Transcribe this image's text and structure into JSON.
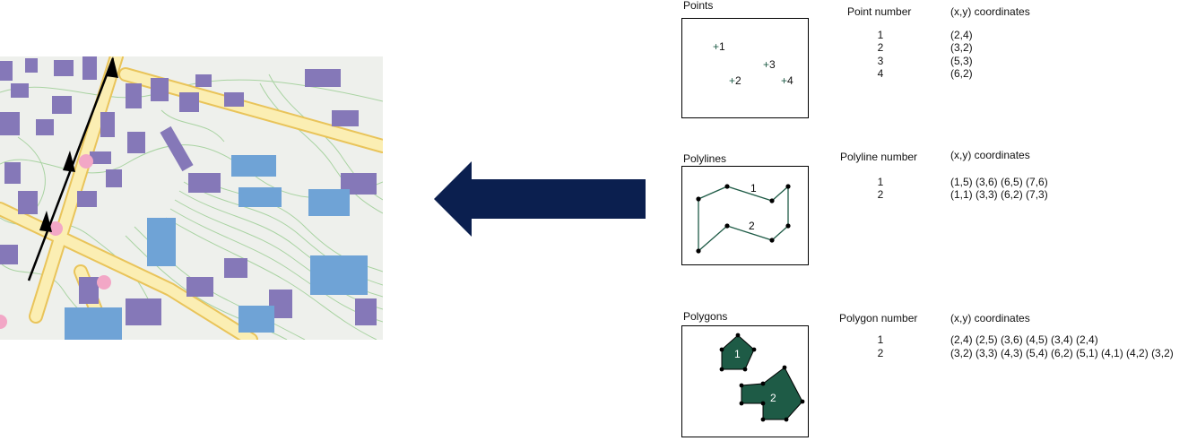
{
  "points": {
    "title": "Points",
    "col_number": "Point number",
    "col_coords": "(x,y) coordinates",
    "rows": [
      {
        "n": "1",
        "c": "(2,4)"
      },
      {
        "n": "2",
        "c": "(3,2)"
      },
      {
        "n": "3",
        "c": "(5,3)"
      },
      {
        "n": "4",
        "c": "(6,2)"
      }
    ],
    "labels": [
      "1",
      "2",
      "3",
      "4"
    ]
  },
  "polylines": {
    "title": "Polylines",
    "col_number": "Polyline number",
    "col_coords": "(x,y) coordinates",
    "rows": [
      {
        "n": "1",
        "c": "(1,5) (3,6) (6,5) (7,6)"
      },
      {
        "n": "2",
        "c": "(1,1) (3,3) (6,2) (7,3)"
      }
    ],
    "labels": [
      "1",
      "2"
    ]
  },
  "polygons": {
    "title": "Polygons",
    "col_number": "Polygon number",
    "col_coords": "(x,y) coordinates",
    "rows": [
      {
        "n": "1",
        "c": "(2,4) (2,5) (3,6) (4,5) (3,4) (2,4)"
      },
      {
        "n": "2",
        "c": "(3,2) (3,3) (4,3) (5,4) (6,2) (5,1) (4,1) (4,2) (3,2)"
      }
    ],
    "labels": [
      "1",
      "2"
    ]
  },
  "colors": {
    "arrow": "#0b1f4f",
    "feature_green": "#1e5b46",
    "building_purple": "#8578b8",
    "building_blue": "#6fa3d6",
    "road_yellow": "#f2d57c",
    "contour_green": "#9fcf98",
    "point_pink": "#f2a7c6"
  }
}
